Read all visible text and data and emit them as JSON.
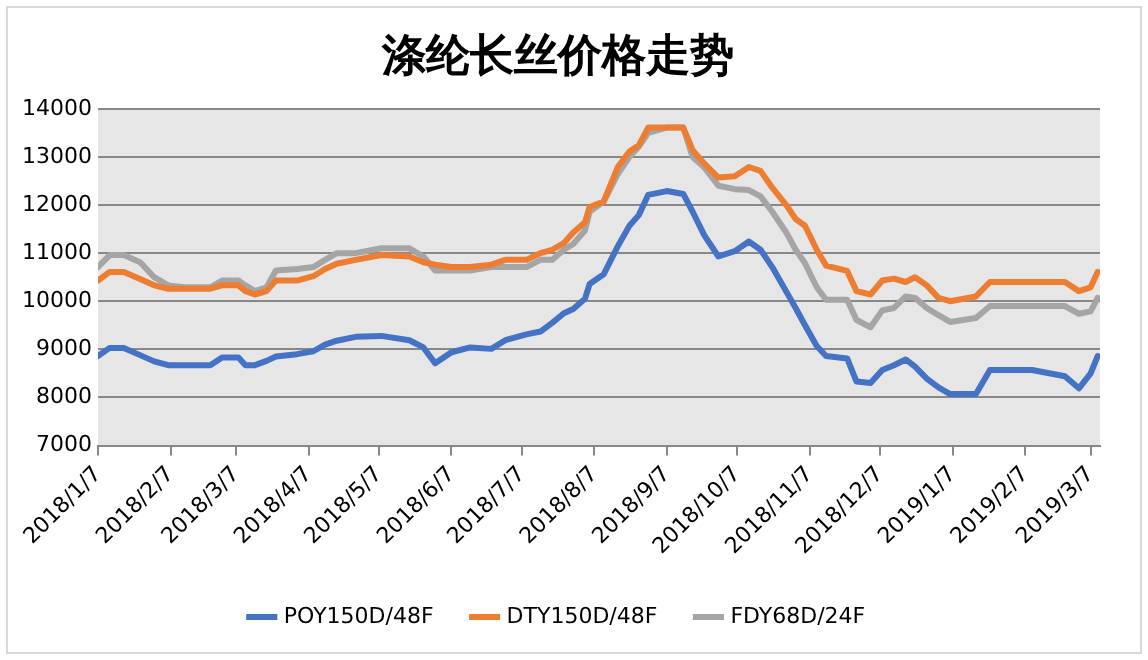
{
  "chart_data": {
    "type": "line",
    "title": "涤纶长丝价格走势",
    "x": [
      "2018-01-07",
      "2018-01-12",
      "2018-01-18",
      "2018-01-25",
      "2018-01-31",
      "2018-02-06",
      "2018-02-13",
      "2018-02-24",
      "2018-03-01",
      "2018-03-08",
      "2018-03-11",
      "2018-03-15",
      "2018-03-20",
      "2018-03-24",
      "2018-04-02",
      "2018-04-09",
      "2018-04-14",
      "2018-04-19",
      "2018-04-27",
      "2018-05-08",
      "2018-05-20",
      "2018-05-26",
      "2018-05-31",
      "2018-06-07",
      "2018-06-15",
      "2018-06-24",
      "2018-06-30",
      "2018-07-09",
      "2018-07-15",
      "2018-07-20",
      "2018-07-25",
      "2018-07-29",
      "2018-08-03",
      "2018-08-05",
      "2018-08-11",
      "2018-08-17",
      "2018-08-22",
      "2018-08-26",
      "2018-08-30",
      "2018-09-07",
      "2018-09-14",
      "2018-09-18",
      "2018-09-23",
      "2018-09-29",
      "2018-10-06",
      "2018-10-12",
      "2018-10-17",
      "2018-10-22",
      "2018-10-28",
      "2018-11-01",
      "2018-11-05",
      "2018-11-10",
      "2018-11-14",
      "2018-11-23",
      "2018-11-27",
      "2018-12-03",
      "2018-12-08",
      "2018-12-13",
      "2018-12-18",
      "2018-12-22",
      "2018-12-27",
      "2019-01-01",
      "2019-01-06",
      "2019-01-17",
      "2019-01-23",
      "2019-02-10",
      "2019-02-24",
      "2019-03-02",
      "2019-03-07",
      "2019-03-10"
    ],
    "series": [
      {
        "name": "POY150D/48F",
        "color": "#4472c4",
        "values": [
          8860,
          9030,
          9030,
          8880,
          8750,
          8670,
          8670,
          8670,
          8830,
          8830,
          8670,
          8670,
          8760,
          8850,
          8900,
          8960,
          9100,
          9180,
          9260,
          9280,
          9190,
          9040,
          8710,
          8940,
          9040,
          9010,
          9190,
          9310,
          9370,
          9550,
          9750,
          9840,
          10050,
          10360,
          10560,
          11140,
          11570,
          11790,
          12210,
          12290,
          12230,
          11860,
          11370,
          10930,
          11040,
          11240,
          11070,
          10710,
          10200,
          9860,
          9500,
          9070,
          8860,
          8810,
          8330,
          8300,
          8570,
          8670,
          8790,
          8640,
          8390,
          8210,
          8070,
          8070,
          8570,
          8570,
          8440,
          8190,
          8500,
          8860
        ]
      },
      {
        "name": "DTY150D/48F",
        "color": "#ed7d31",
        "values": [
          10430,
          10610,
          10610,
          10460,
          10330,
          10260,
          10260,
          10260,
          10330,
          10330,
          10210,
          10140,
          10210,
          10430,
          10430,
          10520,
          10670,
          10780,
          10860,
          10960,
          10930,
          10810,
          10760,
          10710,
          10710,
          10760,
          10860,
          10860,
          11000,
          11070,
          11210,
          11430,
          11640,
          11960,
          12070,
          12790,
          13110,
          13240,
          13610,
          13610,
          13610,
          13140,
          12860,
          12570,
          12600,
          12790,
          12710,
          12360,
          12000,
          11710,
          11570,
          11070,
          10740,
          10630,
          10210,
          10140,
          10430,
          10470,
          10400,
          10500,
          10330,
          10070,
          10000,
          10100,
          10400,
          10400,
          10400,
          10210,
          10290,
          10610
        ]
      },
      {
        "name": "FDY68D/24F",
        "color": "#a5a5a5",
        "values": [
          10710,
          10960,
          10960,
          10810,
          10500,
          10330,
          10290,
          10290,
          10430,
          10430,
          10330,
          10210,
          10290,
          10640,
          10670,
          10710,
          10860,
          11000,
          11000,
          11100,
          11100,
          10930,
          10640,
          10640,
          10640,
          10710,
          10710,
          10710,
          10860,
          10860,
          11070,
          11190,
          11470,
          11860,
          12070,
          12640,
          13000,
          13210,
          13500,
          13610,
          13610,
          13000,
          12780,
          12400,
          12330,
          12310,
          12180,
          11860,
          11430,
          11070,
          10790,
          10290,
          10030,
          10030,
          9610,
          9460,
          9810,
          9860,
          10100,
          10070,
          9860,
          9710,
          9570,
          9650,
          9900,
          9900,
          9900,
          9740,
          9790,
          10070
        ]
      }
    ],
    "xlim": [
      "2018-01-07",
      "2019-03-11"
    ],
    "xticks": [
      {
        "value": "2018-01-07",
        "label": "2018/1/7"
      },
      {
        "value": "2018-02-07",
        "label": "2018/2/7"
      },
      {
        "value": "2018-03-07",
        "label": "2018/3/7"
      },
      {
        "value": "2018-04-07",
        "label": "2018/4/7"
      },
      {
        "value": "2018-05-07",
        "label": "2018/5/7"
      },
      {
        "value": "2018-06-07",
        "label": "2018/6/7"
      },
      {
        "value": "2018-07-07",
        "label": "2018/7/7"
      },
      {
        "value": "2018-08-07",
        "label": "2018/8/7"
      },
      {
        "value": "2018-09-07",
        "label": "2018/9/7"
      },
      {
        "value": "2018-10-07",
        "label": "2018/10/7"
      },
      {
        "value": "2018-11-07",
        "label": "2018/11/7"
      },
      {
        "value": "2018-12-07",
        "label": "2018/12/7"
      },
      {
        "value": "2019-01-07",
        "label": "2019/1/7"
      },
      {
        "value": "2019-02-07",
        "label": "2019/2/7"
      },
      {
        "value": "2019-03-07",
        "label": "2019/3/7"
      }
    ],
    "ylim": [
      7000,
      14000
    ],
    "yticks": [
      7000,
      8000,
      9000,
      10000,
      11000,
      12000,
      13000,
      14000
    ],
    "grid": "y",
    "legend": "bottom",
    "marker": "none",
    "line_style": "solid"
  }
}
